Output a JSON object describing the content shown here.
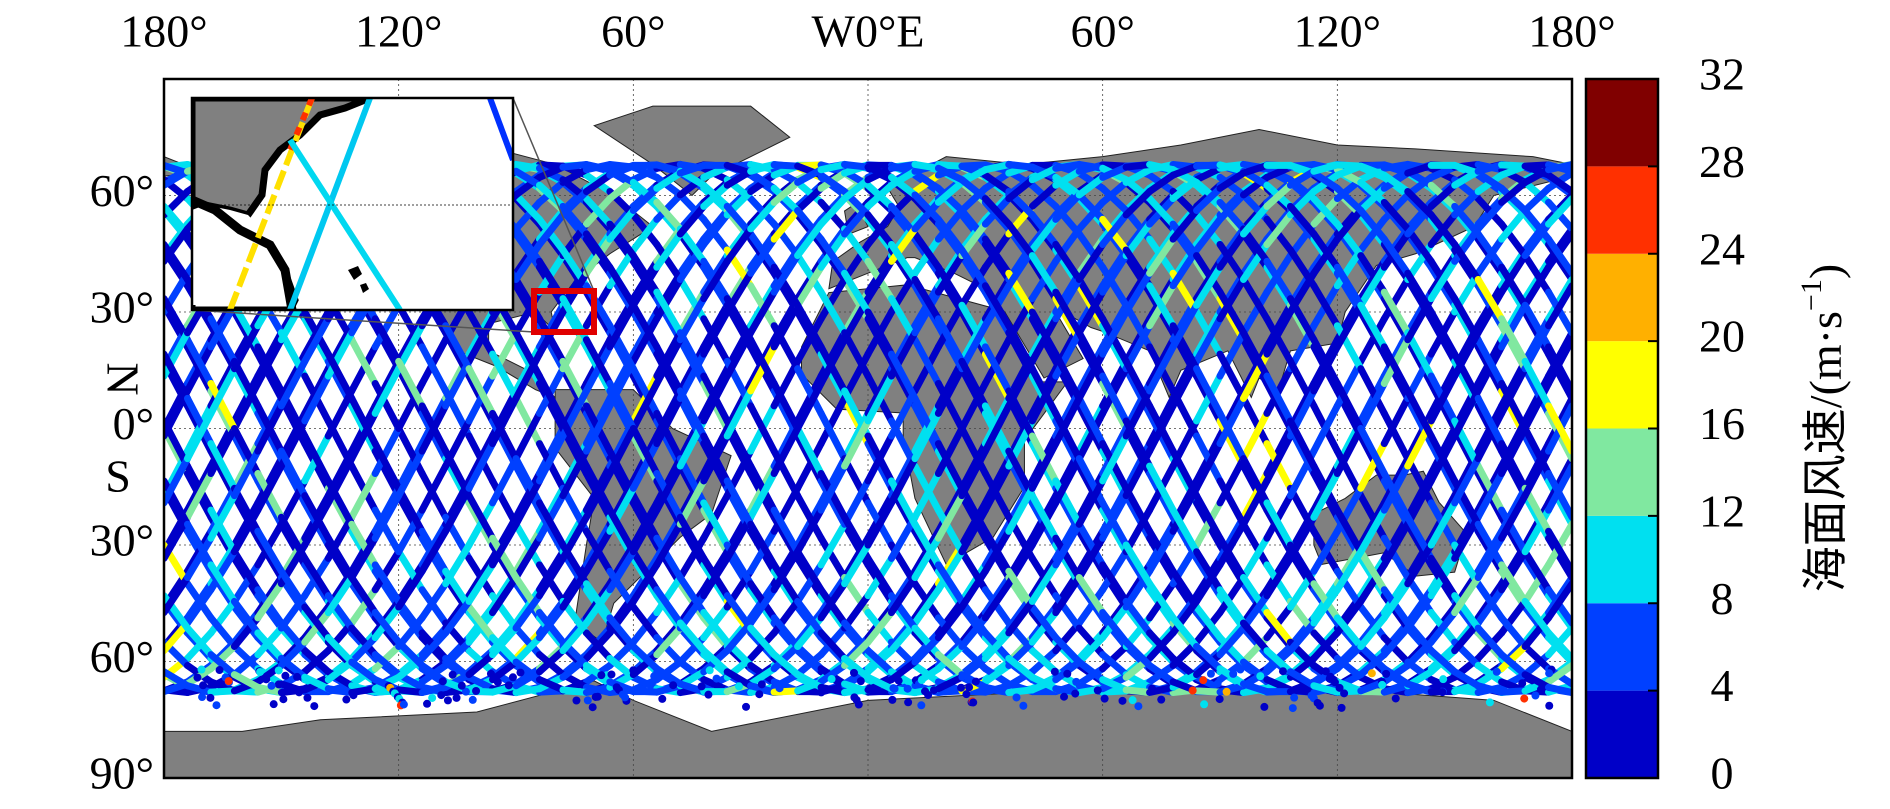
{
  "chart_data": {
    "type": "map",
    "xlim": [
      -180,
      180
    ],
    "ylim": [
      -90,
      90
    ],
    "xticks": [
      {
        "value": -180,
        "label": "180°"
      },
      {
        "value": -120,
        "label": "120°"
      },
      {
        "value": -60,
        "label": "60°"
      },
      {
        "value": 0,
        "label": "W0°E"
      },
      {
        "value": 60,
        "label": "60°"
      },
      {
        "value": 120,
        "label": "120°"
      },
      {
        "value": 180,
        "label": "180°"
      }
    ],
    "yticks": [
      {
        "value": 60,
        "label": "60°"
      },
      {
        "value": 30,
        "label": "30°"
      },
      {
        "value": 0,
        "label": "0°"
      },
      {
        "value": -30,
        "label": "30°"
      },
      {
        "value": -60,
        "label": "60°"
      },
      {
        "value": -90,
        "label": "90°"
      }
    ],
    "north_label": "N",
    "south_label": "S",
    "grid": true,
    "colorbar": {
      "label": "海面风速/(m·s",
      "label_superscript": "−1",
      "label_end": ")",
      "ticks": [
        0,
        4,
        8,
        12,
        16,
        20,
        24,
        28,
        32
      ],
      "colors": [
        "#0000c8",
        "#0040ff",
        "#00e0f0",
        "#80e8a0",
        "#ffff00",
        "#ffb000",
        "#ff3000",
        "#800000"
      ]
    }
  }
}
